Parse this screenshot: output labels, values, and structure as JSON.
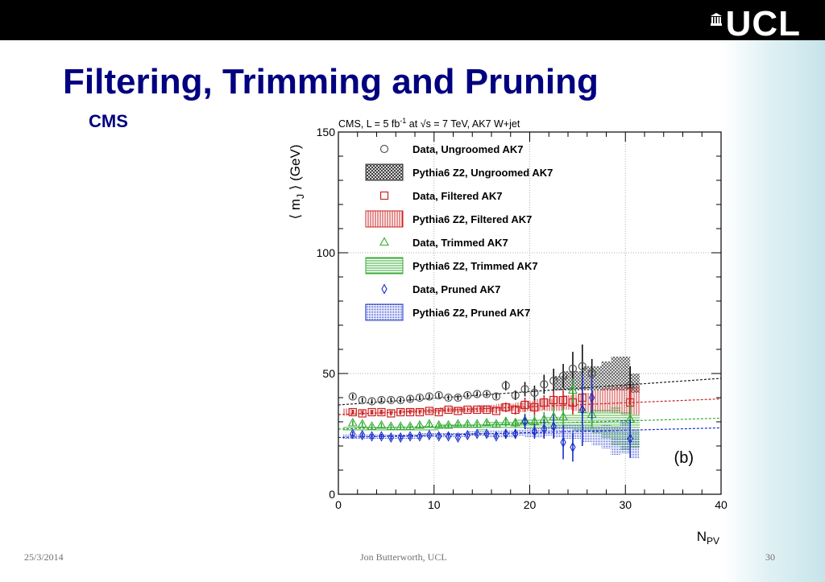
{
  "header": {
    "logo_text": "UCL"
  },
  "slide": {
    "title": "Filtering, Trimming and Pruning",
    "subtitle": "CMS"
  },
  "footer": {
    "date": "25/3/2014",
    "author": "Jon Butterworth, UCL",
    "page": "30"
  },
  "chart_data": {
    "type": "scatter",
    "title": "CMS, L = 5 fb⁻¹ at √s = 7 TeV, AK7 W+jet",
    "panel_label": "(b)",
    "xlabel": "N_PV",
    "ylabel": "⟨ m_J ⟩ (GeV)",
    "xlim": [
      0,
      40
    ],
    "ylim": [
      0,
      150
    ],
    "xticks": [
      0,
      10,
      20,
      30,
      40
    ],
    "yticks": [
      0,
      50,
      100,
      150
    ],
    "grid": true,
    "legend_position": "top-left",
    "legend": [
      "Data, Ungroomed AK7",
      "Pythia6 Z2, Ungroomed AK7",
      "Data, Filtered AK7",
      "Pythia6 Z2, Filtered AK7",
      "Data, Trimmed AK7",
      "Pythia6 Z2, Trimmed AK7",
      "Data, Pruned AK7",
      "Pythia6 Z2, Pruned AK7"
    ],
    "colors": {
      "ungroomed": "#333333",
      "filtered": "#cc2222",
      "trimmed": "#33aa33",
      "pruned": "#1a2fc8"
    },
    "series": [
      {
        "name": "Data, Ungroomed AK7",
        "kind": "data",
        "marker": "circle",
        "color": "#555555",
        "x": [
          1.5,
          2.5,
          3.5,
          4.5,
          5.5,
          6.5,
          7.5,
          8.5,
          9.5,
          10.5,
          11.5,
          12.5,
          13.5,
          14.5,
          15.5,
          16.5,
          17.5,
          18.5,
          19.5,
          20.5,
          21.5,
          22.5,
          23.5,
          24.5,
          25.5,
          26.5,
          30.5
        ],
        "y": [
          40.5,
          39,
          38.5,
          39,
          39,
          39,
          39.5,
          40,
          40.5,
          41,
          40,
          40,
          41,
          41.5,
          41.5,
          40.5,
          45,
          41,
          43.5,
          42,
          45.5,
          47,
          49,
          52,
          53,
          50,
          45
        ],
        "err": [
          1,
          1,
          1,
          1,
          1,
          1,
          1,
          1,
          1,
          1,
          1,
          1,
          1,
          1,
          1,
          1,
          2,
          2,
          3,
          3,
          4,
          5,
          5,
          7,
          9,
          6,
          8
        ]
      },
      {
        "name": "Data, Filtered AK7",
        "kind": "data",
        "marker": "square",
        "color": "#cc2222",
        "x": [
          1.5,
          2.5,
          3.5,
          4.5,
          5.5,
          6.5,
          7.5,
          8.5,
          9.5,
          10.5,
          11.5,
          12.5,
          13.5,
          14.5,
          15.5,
          16.5,
          17.5,
          18.5,
          19.5,
          20.5,
          21.5,
          22.5,
          23.5,
          24.5,
          25.5,
          30.5
        ],
        "y": [
          34,
          33.5,
          34,
          34,
          33.5,
          34,
          34,
          34,
          34.5,
          34,
          35,
          34.5,
          35,
          35,
          35,
          34.5,
          36,
          35,
          37,
          36,
          38,
          39,
          39,
          38,
          40,
          38
        ],
        "err": [
          1,
          1,
          1,
          1,
          1,
          1,
          1,
          1,
          1,
          1,
          1,
          1,
          1,
          1,
          1,
          1,
          2,
          2,
          3,
          3,
          3,
          4,
          4,
          5,
          6,
          6
        ]
      },
      {
        "name": "Data, Trimmed AK7",
        "kind": "data",
        "marker": "triangle",
        "color": "#33aa33",
        "x": [
          1.5,
          2.5,
          3.5,
          4.5,
          5.5,
          6.5,
          7.5,
          8.5,
          9.5,
          10.5,
          11.5,
          12.5,
          13.5,
          14.5,
          15.5,
          16.5,
          17.5,
          18.5,
          19.5,
          20.5,
          21.5,
          22.5,
          23.5,
          24.5,
          25.5,
          26.5,
          30.5
        ],
        "y": [
          29.5,
          29,
          28,
          28.5,
          28,
          28,
          28,
          28.5,
          29,
          28.5,
          28.5,
          29,
          29,
          29,
          29.5,
          29,
          30,
          29.5,
          30.5,
          30,
          31,
          32,
          32,
          43,
          35,
          33,
          31
        ],
        "err": [
          1,
          1,
          1,
          1,
          1,
          1,
          1,
          1,
          1,
          1,
          1,
          1,
          1,
          1,
          1,
          1,
          2,
          2,
          3,
          3,
          3,
          4,
          4,
          5,
          6,
          6,
          6
        ]
      },
      {
        "name": "Data, Pruned AK7",
        "kind": "data",
        "marker": "diamond",
        "color": "#1a2fc8",
        "x": [
          1.5,
          2.5,
          3.5,
          4.5,
          5.5,
          6.5,
          7.5,
          8.5,
          9.5,
          10.5,
          11.5,
          12.5,
          13.5,
          14.5,
          15.5,
          16.5,
          17.5,
          18.5,
          19.5,
          20.5,
          21.5,
          22.5,
          23.5,
          24.5,
          25.5,
          26.5,
          30.5
        ],
        "y": [
          25,
          24.5,
          24,
          24,
          23.5,
          23.5,
          24,
          24,
          24.5,
          24,
          24,
          23.5,
          24.5,
          25,
          25,
          24,
          25,
          25,
          30,
          26,
          27,
          28,
          21.5,
          19.5,
          35,
          40,
          23
        ],
        "err": [
          1,
          1,
          1,
          1,
          1,
          1,
          1,
          1,
          1,
          1,
          1,
          1,
          1,
          1,
          1,
          1,
          2,
          2,
          3,
          3,
          4,
          5,
          7,
          6,
          15,
          9,
          8
        ]
      },
      {
        "name": "Pythia6 Z2, Ungroomed AK7",
        "kind": "mc_band",
        "color": "#222222",
        "x": [
          23,
          24,
          25,
          26,
          27,
          28,
          29,
          30,
          31
        ],
        "y": [
          46,
          47,
          47,
          48,
          48,
          49,
          50,
          50,
          46
        ],
        "err": [
          3,
          4,
          4,
          5,
          5,
          6,
          7,
          7,
          4
        ],
        "fit": [
          37,
          48
        ]
      },
      {
        "name": "Pythia6 Z2, Filtered AK7",
        "kind": "mc_band",
        "color": "#cc2222",
        "x": [
          1,
          2,
          3,
          4,
          5,
          6,
          7,
          8,
          9,
          10,
          11,
          12,
          13,
          14,
          15,
          16,
          17,
          18,
          19,
          20,
          21,
          22,
          23,
          24,
          25,
          26,
          27,
          28,
          29,
          30,
          31
        ],
        "y": [
          34,
          34,
          34,
          34,
          34,
          34,
          34.5,
          34.5,
          34.5,
          34.5,
          35,
          35,
          35,
          35,
          35.5,
          35.5,
          36,
          36,
          36,
          36.5,
          37,
          37,
          37.5,
          38,
          38,
          38,
          38.5,
          39,
          39,
          39,
          39
        ],
        "err": [
          1.5,
          1,
          1,
          1,
          1,
          1,
          1,
          1,
          1,
          1,
          1,
          1,
          1,
          1,
          1.5,
          1.5,
          1.5,
          1.5,
          2,
          2,
          2.5,
          2.5,
          3,
          3,
          3.5,
          4,
          4.5,
          5,
          5.5,
          6,
          6
        ],
        "fit": [
          33,
          39.5
        ]
      },
      {
        "name": "Pythia6 Z2, Trimmed AK7",
        "kind": "mc_band",
        "color": "#33aa33",
        "x": [
          1,
          2,
          3,
          4,
          5,
          6,
          7,
          8,
          9,
          10,
          11,
          12,
          13,
          14,
          15,
          16,
          17,
          18,
          19,
          20,
          21,
          22,
          23,
          24,
          25,
          26,
          27,
          28,
          29,
          30,
          31
        ],
        "y": [
          27,
          27,
          27,
          27,
          27,
          27,
          27.5,
          27.5,
          27.5,
          27.5,
          28,
          28,
          28,
          28,
          28,
          28.5,
          28.5,
          29,
          29,
          29,
          29.5,
          29.5,
          30,
          30,
          30,
          30,
          30,
          29.5,
          28,
          26,
          26
        ],
        "err": [
          1,
          1,
          1,
          1,
          1,
          1,
          1,
          1,
          1,
          1,
          1,
          1,
          1,
          1,
          1.5,
          1.5,
          1.5,
          1.5,
          2,
          2,
          2,
          2.5,
          2.5,
          3,
          3.5,
          4,
          5,
          6,
          8,
          8,
          7
        ],
        "fit": [
          27,
          31.5
        ]
      },
      {
        "name": "Pythia6 Z2, Pruned AK7",
        "kind": "mc_band",
        "color": "#1a2fc8",
        "x": [
          1,
          2,
          3,
          4,
          5,
          6,
          7,
          8,
          9,
          10,
          11,
          12,
          13,
          14,
          15,
          16,
          17,
          18,
          19,
          20,
          21,
          22,
          23,
          24,
          25,
          26,
          27,
          28,
          29,
          30,
          31
        ],
        "y": [
          24,
          24,
          24,
          24,
          24,
          24,
          24,
          24,
          24.5,
          24.5,
          24.5,
          24.5,
          24.5,
          25,
          25,
          25,
          25,
          25,
          25.5,
          25.5,
          25.5,
          26,
          26,
          26,
          26,
          25,
          24,
          24,
          22,
          24,
          21
        ],
        "err": [
          1,
          1,
          1,
          1,
          1,
          1,
          1,
          1,
          1,
          1,
          1,
          1,
          1,
          1,
          1,
          1.5,
          1.5,
          1.5,
          1.5,
          2,
          2,
          2,
          2.5,
          3,
          3,
          3.5,
          4,
          5,
          6,
          7,
          6
        ],
        "fit": [
          23.5,
          27.5
        ]
      }
    ]
  }
}
